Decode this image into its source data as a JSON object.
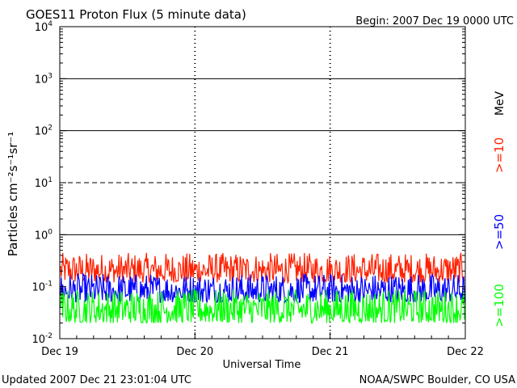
{
  "title": "GOES11 Proton Flux (5 minute data)",
  "begin_label": "Begin: 2007 Dec 19 0000 UTC",
  "updated_label": "Updated 2007 Dec 21 23:01:04 UTC",
  "credit_label": "NOAA/SWPC Boulder, CO USA",
  "chart_data": {
    "type": "line",
    "title": "GOES11 Proton Flux (5 minute data)",
    "xlabel": "Universal Time",
    "ylabel": "Particles cm⁻²s⁻¹sr⁻¹",
    "y_scale": "log",
    "ylim": [
      0.01,
      10000
    ],
    "y_ticks": [
      {
        "base": "10",
        "exp": "-2"
      },
      {
        "base": "10",
        "exp": "-1"
      },
      {
        "base": "10",
        "exp": "0"
      },
      {
        "base": "10",
        "exp": "1"
      },
      {
        "base": "10",
        "exp": "2"
      },
      {
        "base": "10",
        "exp": "3"
      },
      {
        "base": "10",
        "exp": "4"
      }
    ],
    "x_ticks": [
      "Dec 19",
      "Dec 20",
      "Dec 21",
      "Dec 22"
    ],
    "xlim": [
      "2007-12-19",
      "2007-12-22"
    ],
    "gridlines": {
      "solid_decades": [
        1,
        100,
        1000
      ],
      "dashed_decades": [
        10
      ]
    },
    "unit_label": "MeV",
    "series": [
      {
        "name": ">=10",
        "color": "#ff2000",
        "level_min": 0.12,
        "level_max": 0.45
      },
      {
        "name": ">=50",
        "color": "#0000ff",
        "level_min": 0.05,
        "level_max": 0.18
      },
      {
        "name": ">=100",
        "color": "#00ff00",
        "level_min": 0.02,
        "level_max": 0.09
      }
    ]
  }
}
